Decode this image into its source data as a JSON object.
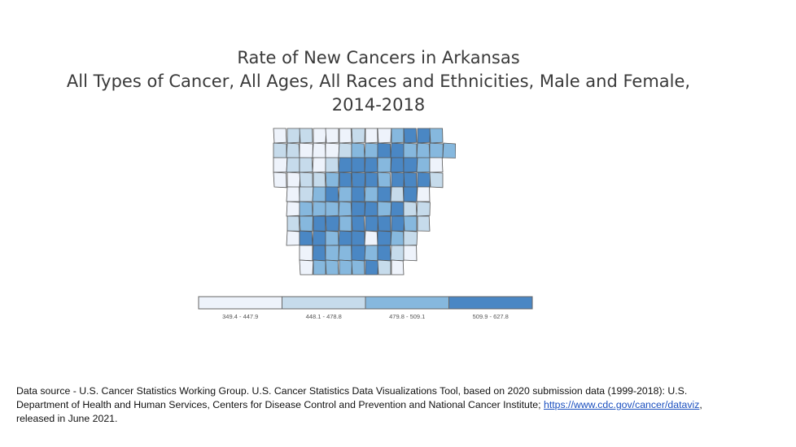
{
  "title": {
    "line1": "Rate of New Cancers in Arkansas",
    "line2": "All Types of Cancer, All Ages, All Races and Ethnicities, Male and Female,",
    "line3": "2014-2018"
  },
  "legend": {
    "bins": [
      {
        "label": "349.4 - 447.9",
        "color": "#eef3fb"
      },
      {
        "label": "448.1 - 478.8",
        "color": "#c6dbeb"
      },
      {
        "label": "479.8 - 509.1",
        "color": "#86b8de"
      },
      {
        "label": "509.9 - 627.8",
        "color": "#4a87c4"
      }
    ]
  },
  "map": {
    "county_bins": [
      [
        0,
        1,
        1,
        0,
        0,
        0,
        1,
        0,
        0,
        2,
        3,
        3,
        2,
        0
      ],
      [
        1,
        1,
        0,
        0,
        0,
        1,
        2,
        2,
        3,
        3,
        2,
        2,
        2,
        2
      ],
      [
        0,
        1,
        1,
        0,
        1,
        3,
        3,
        3,
        2,
        3,
        3,
        2,
        0,
        0
      ],
      [
        0,
        0,
        1,
        1,
        2,
        3,
        3,
        3,
        2,
        3,
        3,
        3,
        1,
        0
      ],
      [
        0,
        0,
        1,
        2,
        3,
        2,
        3,
        2,
        3,
        1,
        3,
        0,
        0,
        0
      ],
      [
        0,
        0,
        2,
        2,
        2,
        2,
        3,
        3,
        2,
        3,
        1,
        1,
        0,
        0
      ],
      [
        0,
        1,
        2,
        3,
        3,
        2,
        3,
        3,
        3,
        3,
        2,
        1,
        0,
        0
      ],
      [
        0,
        0,
        3,
        3,
        2,
        3,
        3,
        0,
        3,
        2,
        1,
        0,
        0,
        0
      ],
      [
        0,
        0,
        0,
        3,
        2,
        2,
        3,
        2,
        3,
        1,
        0,
        0,
        0,
        0
      ],
      [
        0,
        0,
        0,
        2,
        2,
        2,
        2,
        3,
        1,
        0,
        0,
        0,
        0,
        0
      ]
    ]
  },
  "footnote": {
    "text": "Data source - U.S. Cancer Statistics Working Group. U.S. Cancer Statistics Data Visualizations Tool, based on 2020 submission data (1999-2018): U.S. Department of Health and Human Services, Centers for Disease Control and Prevention and National Cancer Institute; ",
    "link": "https://www.cdc.gov/cancer/dataviz",
    "after": ",",
    "text2": "released in June 2021."
  }
}
